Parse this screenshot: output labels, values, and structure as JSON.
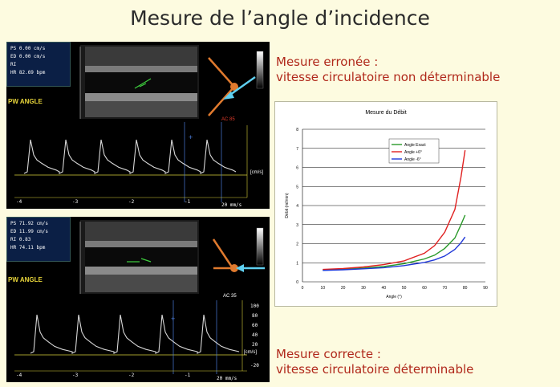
{
  "page": {
    "title": "Mesure de l’angle d’incidence",
    "wrong_line1": "Mesure erronée :",
    "wrong_line2": "vitesse circulatoire  non déterminable",
    "correct_line1": "Mesure correcte :",
    "correct_line2": "vitesse circulatoire  déterminable"
  },
  "colors": {
    "background": "#fdfbe0",
    "caption_red": "#b0281a",
    "probe_orange": "#e07a2e",
    "flow_cyan": "#5fd0f0",
    "label_yellow": "#e8d53a"
  },
  "top_panel": {
    "readout": [
      {
        "label": "PS",
        "value": "0.00 cm/s"
      },
      {
        "label": "ED",
        "value": "0.00 cm/s"
      },
      {
        "label": "RI",
        "value": ""
      },
      {
        "label": "HR",
        "value": "82.69 bpm"
      }
    ],
    "mode_label": "PW ANGLE",
    "angle_correction": "AC 85",
    "velocity_unit": "[cm/s]",
    "time_ticks": [
      "-4",
      "-3",
      "-2",
      "-1"
    ],
    "sweep": "20 mm/s"
  },
  "bottom_panel": {
    "readout": [
      {
        "label": "PS",
        "value": "71.92 cm/s"
      },
      {
        "label": "ED",
        "value": "11.99 cm/s"
      },
      {
        "label": "RI",
        "value": "0.83"
      },
      {
        "label": "HR",
        "value": "74.11 bpm"
      }
    ],
    "mode_label": "PW ANGLE",
    "angle_correction": "AC 35",
    "velocity_unit": "[cm/s]",
    "velocity_ticks": [
      "100",
      "80",
      "60",
      "40",
      "20",
      "-20"
    ],
    "time_ticks": [
      "-4",
      "-3",
      "-2",
      "-1"
    ],
    "sweep": "20 mm/s"
  },
  "chart_data": {
    "type": "line",
    "title": "Mesure du Débit",
    "xlabel": "Angle (°)",
    "ylabel": "Débit (ml/min)",
    "xlim": [
      0,
      90
    ],
    "ylim": [
      0,
      8
    ],
    "x_ticks": [
      0,
      10,
      20,
      30,
      40,
      50,
      60,
      70,
      80,
      90
    ],
    "y_ticks": [
      0,
      1,
      2,
      3,
      4,
      5,
      6,
      7,
      8
    ],
    "grid": "horizontal",
    "legend_position": "top-left",
    "x": [
      10,
      20,
      30,
      40,
      50,
      60,
      65,
      70,
      75,
      78,
      80
    ],
    "series": [
      {
        "name": "Angle Exact",
        "color": "#2a9a2a",
        "values": [
          0.62,
          0.66,
          0.72,
          0.8,
          0.95,
          1.2,
          1.4,
          1.75,
          2.3,
          3.0,
          3.5
        ]
      },
      {
        "name": "Angle +6°",
        "color": "#e02020",
        "values": [
          0.65,
          0.7,
          0.78,
          0.9,
          1.1,
          1.5,
          1.9,
          2.6,
          3.8,
          5.5,
          6.9
        ]
      },
      {
        "name": "Angle -6°",
        "color": "#2038d8",
        "values": [
          0.6,
          0.63,
          0.68,
          0.74,
          0.85,
          1.02,
          1.15,
          1.35,
          1.7,
          2.05,
          2.35
        ]
      }
    ]
  }
}
